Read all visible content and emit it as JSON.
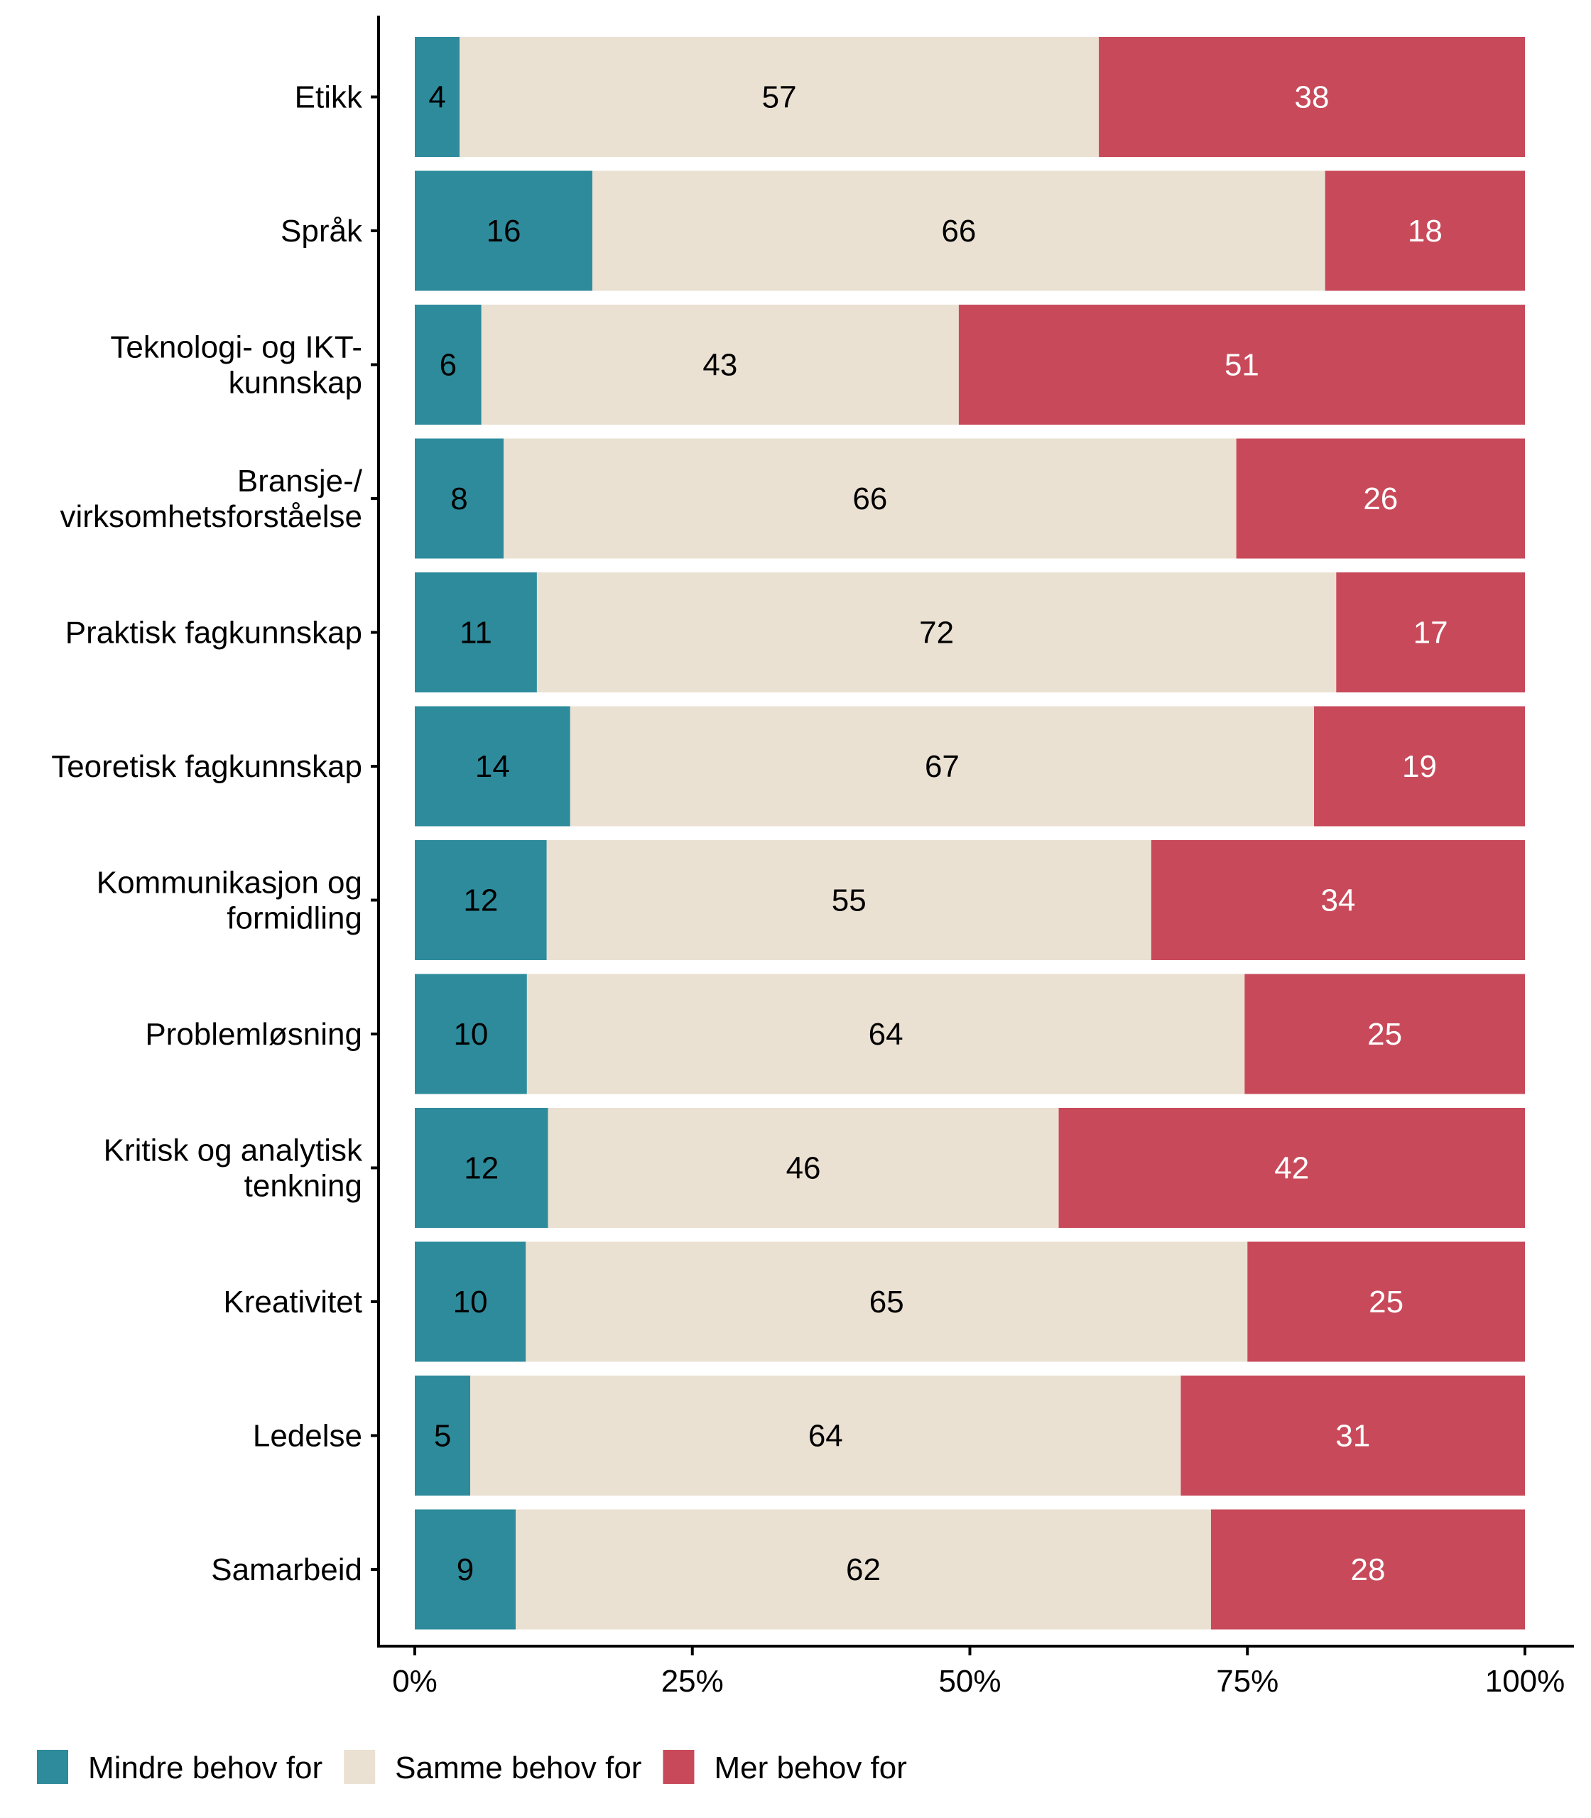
{
  "chart_data": {
    "type": "bar",
    "orientation": "horizontal",
    "stacked": true,
    "normalized": true,
    "title": "",
    "xlabel": "",
    "ylabel": "",
    "xlim": [
      0,
      100
    ],
    "x_ticks": [
      "0%",
      "25%",
      "50%",
      "75%",
      "100%"
    ],
    "x_tick_values": [
      0,
      25,
      50,
      75,
      100
    ],
    "grid": false,
    "legend_position": "bottom",
    "categories": [
      [
        "Etikk"
      ],
      [
        "Språk"
      ],
      [
        "Teknologi- og IKT-",
        "kunnskap"
      ],
      [
        "Bransje-/",
        "virksomhetsforståelse"
      ],
      [
        "Praktisk fagkunnskap"
      ],
      [
        "Teoretisk fagkunnskap"
      ],
      [
        "Kommunikasjon og",
        "formidling"
      ],
      [
        "Problemløsning"
      ],
      [
        "Kritisk og analytisk",
        "tenkning"
      ],
      [
        "Kreativitet"
      ],
      [
        "Ledelse"
      ],
      [
        "Samarbeid"
      ]
    ],
    "series": [
      {
        "name": "Mindre behov for",
        "color": "#2E8B9C",
        "label_color": "#000000",
        "values": [
          4,
          16,
          6,
          8,
          11,
          14,
          12,
          10,
          12,
          10,
          5,
          9
        ]
      },
      {
        "name": "Samme behov for",
        "color": "#EBE1D2",
        "label_color": "#000000",
        "values": [
          57,
          66,
          43,
          66,
          72,
          67,
          55,
          64,
          46,
          65,
          64,
          62
        ]
      },
      {
        "name": "Mer behov for",
        "color": "#C84A5A",
        "label_color": "#FFFFFF",
        "values": [
          38,
          18,
          51,
          26,
          17,
          19,
          34,
          25,
          42,
          25,
          31,
          28
        ]
      }
    ]
  }
}
